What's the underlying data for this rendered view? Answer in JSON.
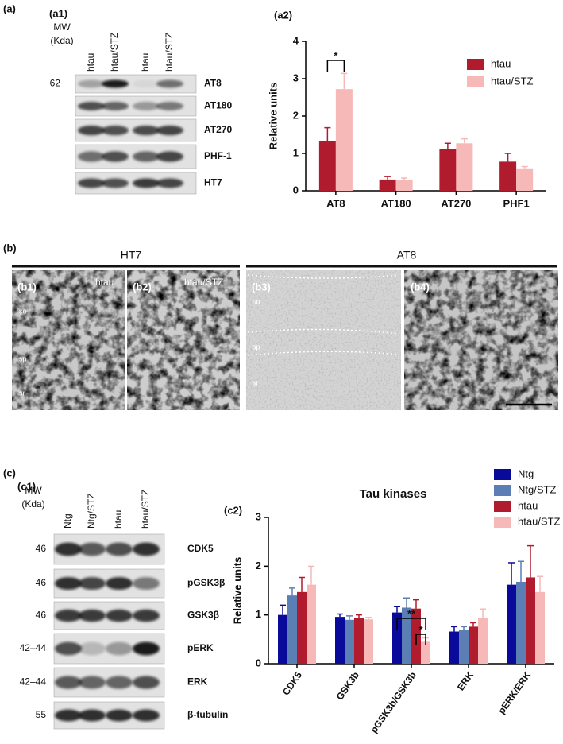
{
  "figure": {
    "panel_labels": {
      "a": "(a)",
      "a1": "(a1)",
      "a2": "(a2)",
      "b": "(b)",
      "b1": "(b1)",
      "b2": "(b2)",
      "b3": "(b3)",
      "b4": "(b4)",
      "c": "(c)",
      "c1": "(c1)",
      "c2": "(c2)"
    },
    "blot_a": {
      "mw_header": [
        "MW",
        "(Kda)"
      ],
      "lanes": [
        "htau",
        "htau/STZ",
        "htau",
        "htau/STZ"
      ],
      "rows": [
        {
          "mw": "62",
          "label": "AT8"
        },
        {
          "label": "AT180"
        },
        {
          "label": "AT270"
        },
        {
          "label": "PHF-1"
        },
        {
          "label": "HT7"
        }
      ]
    },
    "histology": {
      "headers": [
        "HT7",
        "AT8"
      ],
      "b1_group": "htau",
      "b2_group": "htau/STZ",
      "layers": [
        "so",
        "sp",
        "sr"
      ]
    },
    "blot_c": {
      "mw_header": [
        "MW",
        "(Kda)"
      ],
      "lanes": [
        "Ntg",
        "Ntg/STZ",
        "htau",
        "htau/STZ"
      ],
      "rows": [
        {
          "mw": "46",
          "label": "CDK5"
        },
        {
          "mw": "46",
          "label": "pGSK3β"
        },
        {
          "mw": "46",
          "label": "GSK3β"
        },
        {
          "mw": "42–44",
          "label": "pERK"
        },
        {
          "mw": "42–44",
          "label": "ERK"
        },
        {
          "mw": "55",
          "label": "β-tubulin"
        }
      ]
    }
  },
  "chart_data": [
    {
      "type": "bar",
      "ylabel": "Relative units",
      "categories": [
        "AT8",
        "AT180",
        "AT270",
        "PHF1"
      ],
      "series": [
        {
          "name": "htau",
          "color": "#b01c2e",
          "values": [
            1.32,
            0.3,
            1.12,
            0.78
          ],
          "errors": [
            0.37,
            0.08,
            0.15,
            0.22
          ]
        },
        {
          "name": "htau/STZ",
          "color": "#f7b8b8",
          "values": [
            2.72,
            0.28,
            1.27,
            0.6
          ],
          "errors": [
            0.42,
            0.06,
            0.12,
            0.05
          ]
        }
      ],
      "ylim": [
        0,
        4
      ],
      "yticks": [
        0,
        1,
        2,
        3,
        4
      ],
      "annotations": [
        "*"
      ],
      "legend": "upper right"
    },
    {
      "type": "bar",
      "title": "Tau kinases",
      "ylabel": "Relative units",
      "categories": [
        "CDK5",
        "GSK3b",
        "pGSK3b/GSK3b",
        "ERK",
        "pERK/ERK"
      ],
      "series": [
        {
          "name": "Ntg",
          "color": "#0a0a9a",
          "values": [
            1.0,
            0.96,
            1.05,
            0.66,
            1.62
          ],
          "errors": [
            0.2,
            0.06,
            0.12,
            0.1,
            0.45
          ]
        },
        {
          "name": "Ntg/STZ",
          "color": "#5b7fb5",
          "values": [
            1.4,
            0.9,
            1.15,
            0.7,
            1.68
          ],
          "errors": [
            0.15,
            0.08,
            0.2,
            0.06,
            0.42
          ]
        },
        {
          "name": "htau",
          "color": "#b01c2e",
          "values": [
            1.47,
            0.94,
            1.13,
            0.76,
            1.77
          ],
          "errors": [
            0.3,
            0.06,
            0.18,
            0.08,
            0.65
          ]
        },
        {
          "name": "htau/STZ",
          "color": "#f7b8b8",
          "values": [
            1.62,
            0.91,
            0.45,
            0.94,
            1.47
          ],
          "errors": [
            0.38,
            0.04,
            0.08,
            0.18,
            0.32
          ]
        }
      ],
      "ylim": [
        0,
        3
      ],
      "yticks": [
        0,
        1,
        2,
        3
      ],
      "annotations": [
        "**",
        "*"
      ],
      "legend": "upper right"
    }
  ]
}
